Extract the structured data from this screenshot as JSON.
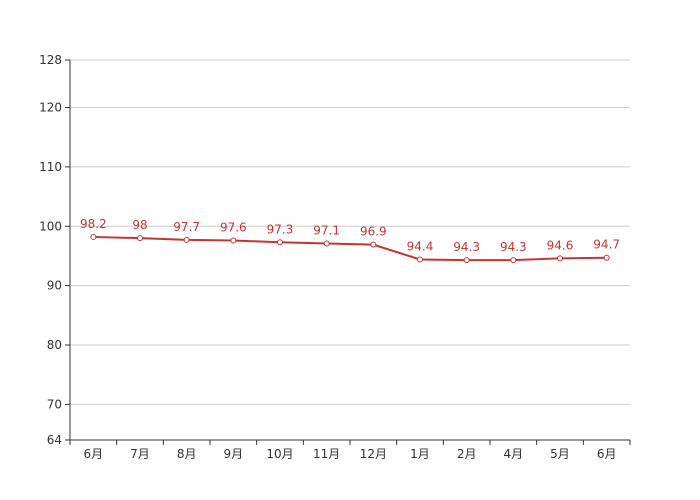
{
  "chart_data": {
    "type": "line",
    "title": "",
    "xlabel": "",
    "ylabel": "",
    "categories": [
      "6月",
      "7月",
      "8月",
      "9月",
      "10月",
      "11月",
      "12月",
      "1月",
      "2月",
      "4月",
      "5月",
      "6月"
    ],
    "series": [
      {
        "values": [
          98.2,
          98,
          97.7,
          97.6,
          97.3,
          97.1,
          96.9,
          94.4,
          94.3,
          94.3,
          94.6,
          94.7
        ],
        "color": "#c23531"
      }
    ],
    "ylim": [
      64,
      128
    ],
    "yticks": [
      64,
      70,
      80,
      90,
      100,
      110,
      120,
      128
    ],
    "grid": true,
    "data_labels": true
  }
}
